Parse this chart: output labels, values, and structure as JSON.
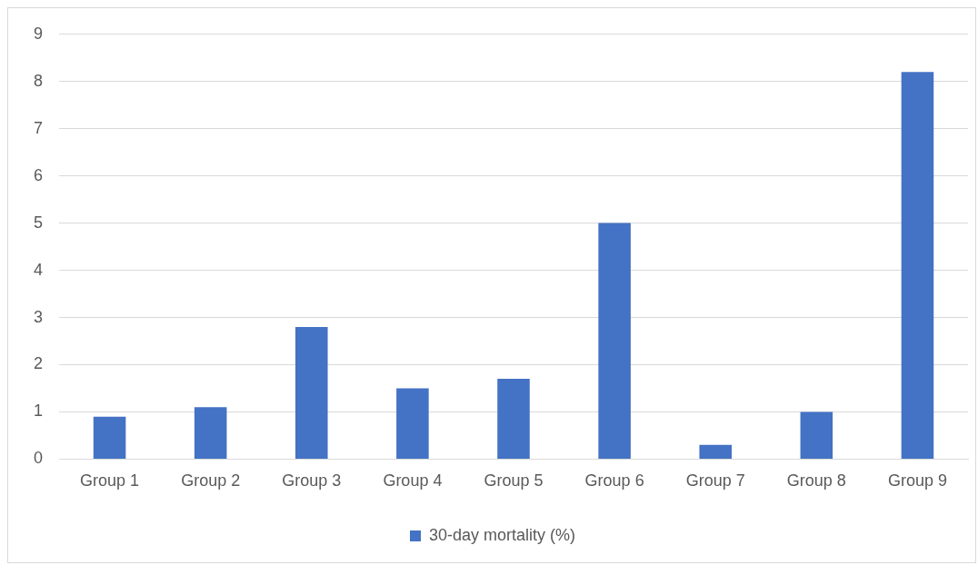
{
  "chart_data": {
    "type": "bar",
    "categories": [
      "Group 1",
      "Group 2",
      "Group 3",
      "Group 4",
      "Group 5",
      "Group 6",
      "Group 7",
      "Group 8",
      "Group 9"
    ],
    "series": [
      {
        "name": "30-day mortality (%)",
        "color": "#4472c4",
        "values": [
          0.9,
          1.1,
          2.8,
          1.5,
          1.7,
          5.0,
          0.3,
          1.0,
          8.2
        ]
      }
    ],
    "ylim": [
      0,
      9
    ],
    "yticks": [
      0,
      1,
      2,
      3,
      4,
      5,
      6,
      7,
      8,
      9
    ],
    "grid": "y",
    "legend": "bottom"
  }
}
